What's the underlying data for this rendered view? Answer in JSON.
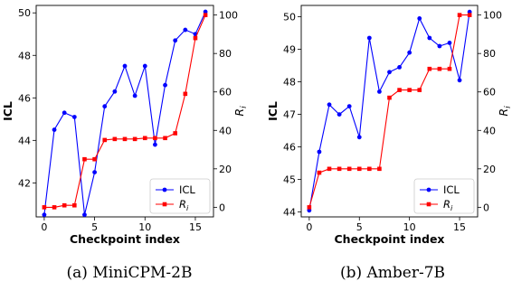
{
  "chart_data": [
    {
      "type": "line",
      "caption": "(a) MiniCPM-2B",
      "xlabel": "Checkpoint index",
      "ylabel_left": "ICL",
      "ylabel_right": "R_i",
      "x": [
        0,
        1,
        2,
        3,
        4,
        5,
        6,
        7,
        8,
        9,
        10,
        11,
        12,
        13,
        14,
        15,
        16
      ],
      "xticks": [
        0,
        5,
        10,
        15
      ],
      "xlim": [
        -0.8,
        16.8
      ],
      "ylim_left": [
        40.4,
        50.35
      ],
      "ylim_right": [
        -5,
        105
      ],
      "yticks_left": [
        42,
        44,
        46,
        48,
        50
      ],
      "yticks_right": [
        0,
        20,
        40,
        60,
        80,
        100
      ],
      "series": [
        {
          "name": "ICL",
          "axis": "left",
          "color": "#0000ff",
          "marker": "circle",
          "values": [
            40.5,
            44.5,
            45.3,
            45.1,
            40.5,
            42.5,
            45.6,
            46.3,
            47.5,
            46.1,
            47.5,
            43.8,
            46.6,
            48.7,
            49.2,
            49.0,
            50.05
          ]
        },
        {
          "name": "R_i",
          "axis": "right",
          "color": "#ff0000",
          "marker": "square",
          "values": [
            0,
            0,
            1,
            1,
            25,
            25,
            35,
            35.5,
            35.5,
            35.5,
            36,
            36,
            36,
            38.5,
            59,
            88,
            100
          ]
        }
      ],
      "legend_position": "lower-right"
    },
    {
      "type": "line",
      "caption": "(b) Amber-7B",
      "xlabel": "Checkpoint index",
      "ylabel_left": "ICL",
      "ylabel_right": "R_i",
      "x": [
        0,
        1,
        2,
        3,
        4,
        5,
        6,
        7,
        8,
        9,
        10,
        11,
        12,
        13,
        14,
        15,
        16
      ],
      "xticks": [
        0,
        5,
        10,
        15
      ],
      "xlim": [
        -0.8,
        16.8
      ],
      "ylim_left": [
        43.85,
        50.35
      ],
      "ylim_right": [
        -5,
        105
      ],
      "yticks_left": [
        44,
        45,
        46,
        47,
        48,
        49,
        50
      ],
      "yticks_right": [
        0,
        20,
        40,
        60,
        80,
        100
      ],
      "series": [
        {
          "name": "ICL",
          "axis": "left",
          "color": "#0000ff",
          "marker": "circle",
          "values": [
            44.05,
            45.85,
            47.3,
            47.0,
            47.25,
            46.3,
            49.35,
            47.7,
            48.3,
            48.45,
            48.9,
            49.95,
            49.35,
            49.1,
            49.2,
            48.05,
            50.15
          ]
        },
        {
          "name": "R_i",
          "axis": "right",
          "color": "#ff0000",
          "marker": "square",
          "values": [
            0,
            18,
            20,
            20,
            20,
            20,
            20,
            20,
            57,
            61,
            61,
            61,
            72,
            72,
            72,
            100,
            100
          ]
        }
      ],
      "legend_position": "lower-right"
    }
  ]
}
